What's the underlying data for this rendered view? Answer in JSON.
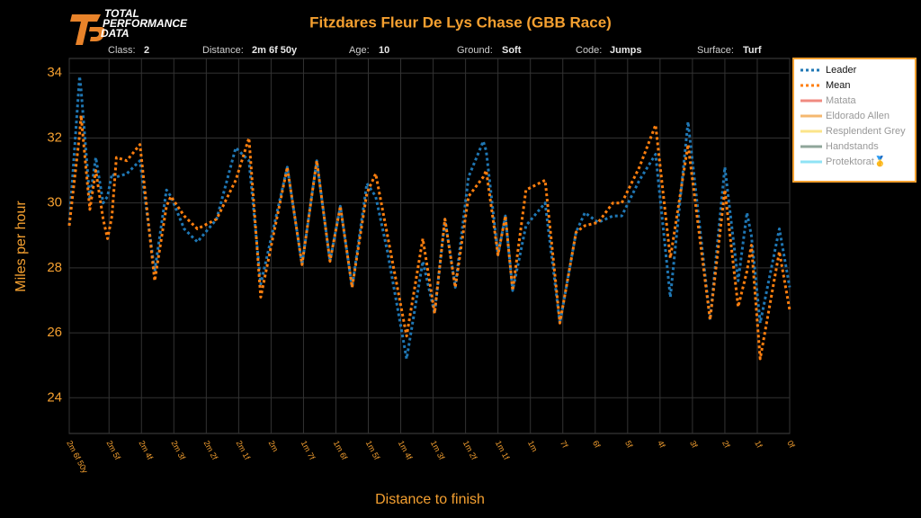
{
  "logo": [
    "TOTAL",
    "PERFORMANCE",
    "DATA"
  ],
  "info": [
    {
      "label": "Class:",
      "value": "2"
    },
    {
      "label": "Distance:",
      "value": "2m 6f 50y"
    },
    {
      "label": "Age:",
      "value": "10"
    },
    {
      "label": "Ground:",
      "value": "Soft"
    },
    {
      "label": "Code:",
      "value": "Jumps"
    },
    {
      "label": "Surface:",
      "value": "Turf"
    }
  ],
  "chart_data": {
    "type": "line",
    "title": "Fitzdares Fleur De Lys Chase (GBB Race)",
    "x_label": "Distance to finish",
    "y_label": "Miles per hour",
    "xlim": [
      4890,
      0
    ],
    "xticks": [
      {
        "value": 4890,
        "label": "2m 6f 50y"
      },
      {
        "value": 4620,
        "label": "2m 5f"
      },
      {
        "value": 4400,
        "label": "2m 4f"
      },
      {
        "value": 4180,
        "label": "2m 3f"
      },
      {
        "value": 3960,
        "label": "2m 2f"
      },
      {
        "value": 3740,
        "label": "2m 1f"
      },
      {
        "value": 3520,
        "label": "2m"
      },
      {
        "value": 3300,
        "label": "1m 7f"
      },
      {
        "value": 3080,
        "label": "1m 6f"
      },
      {
        "value": 2860,
        "label": "1m 5f"
      },
      {
        "value": 2640,
        "label": "1m 4f"
      },
      {
        "value": 2420,
        "label": "1m 3f"
      },
      {
        "value": 2200,
        "label": "1m 2f"
      },
      {
        "value": 1980,
        "label": "1m 1f"
      },
      {
        "value": 1760,
        "label": "1m"
      },
      {
        "value": 1540,
        "label": "7f"
      },
      {
        "value": 1320,
        "label": "6f"
      },
      {
        "value": 1100,
        "label": "5f"
      },
      {
        "value": 880,
        "label": "4f"
      },
      {
        "value": 660,
        "label": "3f"
      },
      {
        "value": 440,
        "label": "2f"
      },
      {
        "value": 220,
        "label": "1f"
      },
      {
        "value": 0,
        "label": "0f"
      }
    ],
    "ylim": [
      22.9,
      34.45
    ],
    "yticks": [
      24,
      26,
      28,
      30,
      32,
      34
    ],
    "grid": true,
    "legend": "right",
    "x": [
      4890,
      4820,
      4810,
      4750,
      4710,
      4660,
      4630,
      4600,
      4570,
      4500,
      4410,
      4310,
      4230,
      4200,
      4110,
      4020,
      3890,
      3760,
      3670,
      3590,
      3410,
      3310,
      3210,
      3120,
      3050,
      2970,
      2870,
      2810,
      2730,
      2600,
      2490,
      2410,
      2340,
      2270,
      2180,
      2080,
      2060,
      1980,
      1930,
      1880,
      1790,
      1660,
      1560,
      1450,
      1390,
      1300,
      1200,
      1140,
      1020,
      910,
      810,
      690,
      540,
      440,
      350,
      290,
      260,
      200,
      70,
      0
    ],
    "series": [
      {
        "name": "Leader",
        "color": "#1f77b4",
        "values": [
          29.3,
          33.9,
          33.5,
          30.1,
          31.4,
          30.0,
          30.2,
          30.9,
          30.8,
          30.9,
          31.3,
          27.9,
          30.4,
          30.2,
          29.2,
          28.8,
          29.5,
          31.7,
          31.3,
          27.5,
          31.1,
          28.1,
          31.3,
          28.2,
          29.9,
          27.4,
          30.6,
          30.2,
          28.5,
          25.2,
          28.2,
          26.6,
          29.5,
          27.4,
          30.8,
          31.9,
          31.6,
          28.4,
          29.6,
          27.3,
          29.3,
          30.0,
          26.3,
          29.1,
          29.7,
          29.4,
          29.6,
          29.6,
          30.7,
          31.5,
          27.1,
          32.5,
          26.4,
          31.1,
          27.6,
          29.7,
          29.0,
          26.3,
          29.2,
          27.4
        ]
      },
      {
        "name": "Mean",
        "color": "#ff7f0e",
        "values": [
          29.3,
          32.1,
          32.7,
          29.8,
          31.0,
          29.5,
          28.9,
          29.6,
          31.4,
          31.3,
          31.8,
          27.6,
          29.9,
          30.2,
          29.6,
          29.2,
          29.5,
          30.7,
          32.0,
          27.1,
          31.1,
          28.1,
          31.3,
          28.2,
          29.9,
          27.4,
          30.3,
          30.9,
          29.0,
          25.9,
          28.9,
          26.6,
          29.5,
          27.4,
          30.2,
          30.8,
          31.0,
          28.4,
          29.6,
          27.3,
          30.4,
          30.7,
          26.3,
          29.1,
          29.3,
          29.4,
          30.0,
          30.0,
          31.1,
          32.4,
          28.3,
          31.8,
          26.4,
          30.4,
          26.8,
          27.9,
          28.7,
          25.2,
          28.5,
          26.7
        ]
      }
    ],
    "legend_only": [
      {
        "name": "Matata",
        "color": "#f08a80"
      },
      {
        "name": "Eldorado Allen",
        "color": "#f5b870"
      },
      {
        "name": "Resplendent Grey",
        "color": "#fbe48a"
      },
      {
        "name": "Handstands",
        "color": "#8fa69a"
      },
      {
        "name": "Protektorat🥇",
        "color": "#8fe3f5"
      }
    ]
  }
}
